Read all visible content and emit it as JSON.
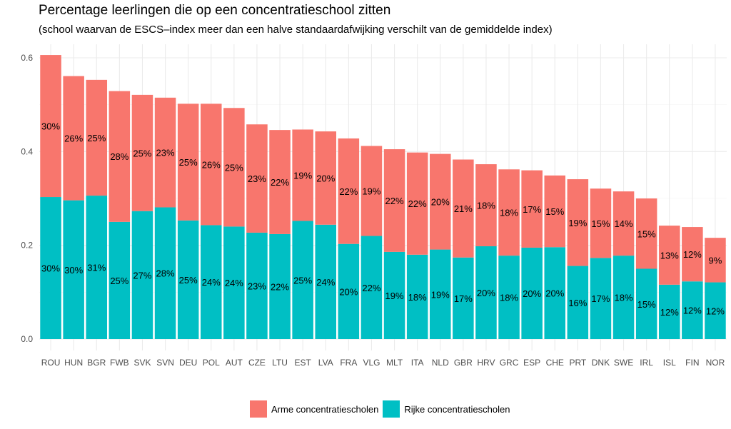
{
  "chart_data": {
    "type": "bar",
    "stacked": true,
    "title": "Percentage leerlingen die op een concentratieschool zitten",
    "subtitle": "(school waarvan de ESCS–index meer dan een halve standaardafwijking verschilt van de gemiddelde index)",
    "ylim": [
      0,
      0.62
    ],
    "yticks": [
      "0.0",
      "0.2",
      "0.4",
      "0.6"
    ],
    "grid": true,
    "legend_position": "bottom",
    "categories": [
      "ROU",
      "HUN",
      "BGR",
      "FWB",
      "SVK",
      "SVN",
      "DEU",
      "POL",
      "AUT",
      "CZE",
      "LTU",
      "EST",
      "LVA",
      "FRA",
      "VLG",
      "MLT",
      "ITA",
      "NLD",
      "GBR",
      "HRV",
      "GRC",
      "ESP",
      "CHE",
      "PRT",
      "DNK",
      "SWE",
      "IRL",
      "ISL",
      "FIN",
      "NOR"
    ],
    "series": [
      {
        "name": "Rijke concentratiescholen",
        "color": "#00BFC4",
        "values": [
          0.303,
          0.296,
          0.306,
          0.25,
          0.273,
          0.281,
          0.253,
          0.243,
          0.24,
          0.227,
          0.224,
          0.252,
          0.244,
          0.203,
          0.22,
          0.186,
          0.18,
          0.191,
          0.174,
          0.198,
          0.178,
          0.195,
          0.196,
          0.156,
          0.173,
          0.178,
          0.15,
          0.116,
          0.123,
          0.121
        ],
        "labels": [
          "30%",
          "30%",
          "31%",
          "25%",
          "27%",
          "28%",
          "25%",
          "24%",
          "24%",
          "23%",
          "22%",
          "25%",
          "24%",
          "20%",
          "22%",
          "19%",
          "18%",
          "19%",
          "17%",
          "20%",
          "18%",
          "20%",
          "20%",
          "16%",
          "17%",
          "18%",
          "15%",
          "12%",
          "12%",
          "12%"
        ]
      },
      {
        "name": "Arme concentratiescholen",
        "color": "#F8766D",
        "values": [
          0.303,
          0.265,
          0.247,
          0.279,
          0.248,
          0.234,
          0.249,
          0.259,
          0.253,
          0.231,
          0.222,
          0.195,
          0.199,
          0.225,
          0.192,
          0.219,
          0.218,
          0.204,
          0.209,
          0.175,
          0.184,
          0.165,
          0.153,
          0.185,
          0.148,
          0.137,
          0.15,
          0.126,
          0.116,
          0.095
        ],
        "labels": [
          "30%",
          "26%",
          "25%",
          "28%",
          "25%",
          "23%",
          "25%",
          "26%",
          "25%",
          "23%",
          "22%",
          "19%",
          "20%",
          "22%",
          "19%",
          "22%",
          "22%",
          "20%",
          "21%",
          "18%",
          "18%",
          "17%",
          "15%",
          "19%",
          "15%",
          "14%",
          "15%",
          "13%",
          "12%",
          "9%"
        ]
      }
    ]
  }
}
